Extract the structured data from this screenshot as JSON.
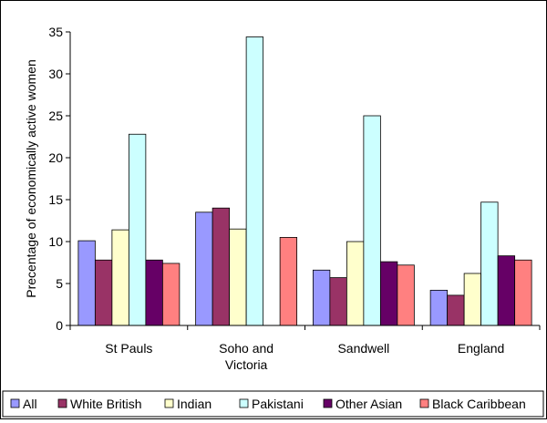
{
  "chart_data": {
    "type": "bar",
    "ylabel": "Precentage of economically active women",
    "ylim": [
      0,
      35
    ],
    "yticks": [
      0,
      5,
      10,
      15,
      20,
      25,
      30,
      35
    ],
    "categories": [
      [
        "St Pauls"
      ],
      [
        "Soho and",
        "Victoria"
      ],
      [
        "Sandwell"
      ],
      [
        "England"
      ]
    ],
    "series": [
      {
        "name": "All",
        "color": "#9999ff",
        "values": [
          10.1,
          13.5,
          6.6,
          4.2
        ]
      },
      {
        "name": "White British",
        "color": "#993366",
        "values": [
          7.8,
          14.0,
          5.7,
          3.6
        ]
      },
      {
        "name": "Indian",
        "color": "#ffffcc",
        "values": [
          11.4,
          11.5,
          10.0,
          6.2
        ]
      },
      {
        "name": "Pakistani",
        "color": "#ccffff",
        "values": [
          22.8,
          34.4,
          25.0,
          14.7
        ]
      },
      {
        "name": "Other Asian",
        "color": "#660066",
        "values": [
          7.8,
          null,
          7.6,
          8.3
        ]
      },
      {
        "name": "Black Caribbean",
        "color": "#ff8080",
        "values": [
          7.4,
          10.5,
          7.2,
          7.8
        ]
      }
    ],
    "legend_position": "bottom",
    "grid": false
  }
}
